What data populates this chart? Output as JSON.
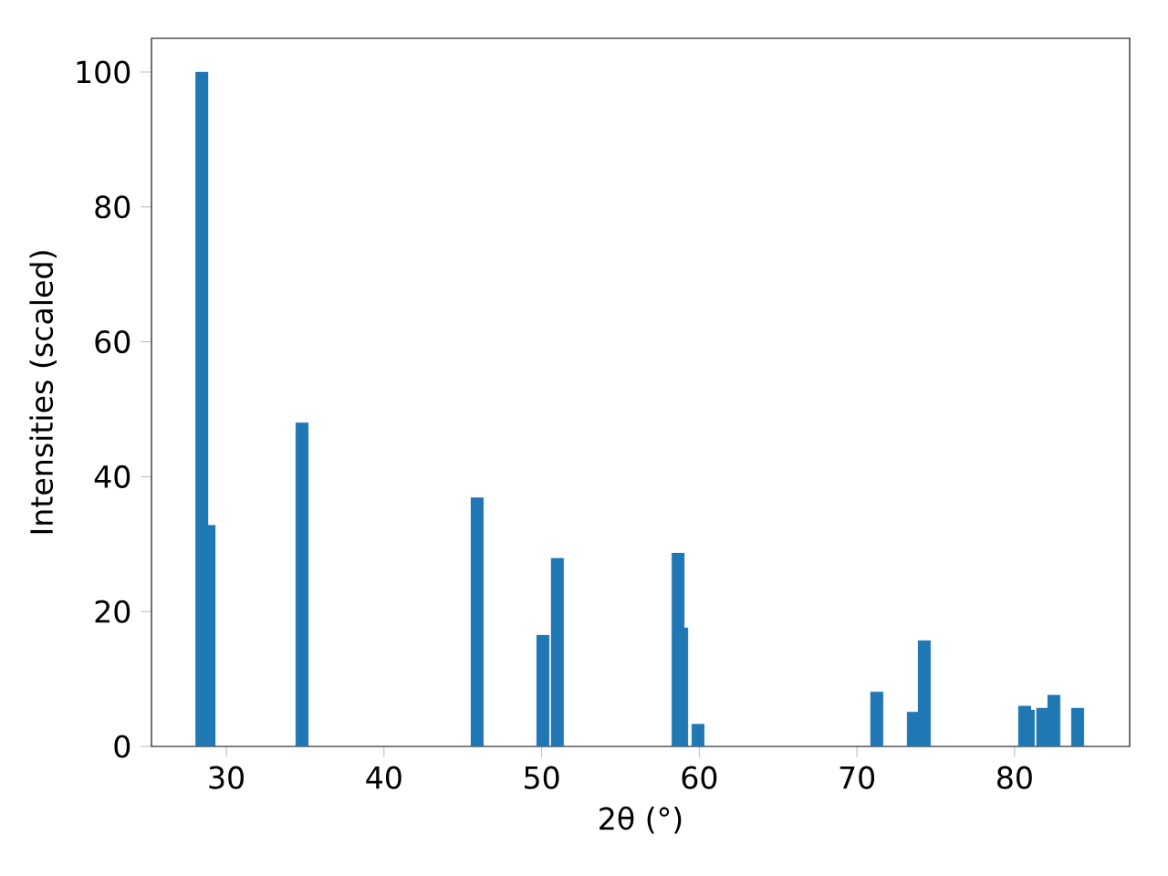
{
  "chart_data": {
    "type": "bar",
    "xlabel": "2θ (°)",
    "ylabel": "Intensities (scaled)",
    "color": "#1f77b4",
    "x": [
      28.44,
      28.9,
      34.8,
      45.91,
      50.08,
      51.0,
      58.65,
      58.88,
      59.92,
      71.26,
      73.58,
      74.27,
      80.64,
      80.87,
      81.79,
      82.49,
      84.0
    ],
    "values": [
      100,
      32.8,
      48.0,
      36.9,
      16.5,
      27.9,
      28.7,
      17.6,
      3.3,
      8.1,
      5.1,
      15.7,
      6.0,
      5.4,
      5.7,
      7.6,
      5.7
    ],
    "xlim": [
      25.25,
      87.3
    ],
    "ylim": [
      0,
      105
    ],
    "xticks": [
      30,
      40,
      50,
      60,
      70,
      80
    ],
    "yticks": [
      0,
      20,
      40,
      60,
      80,
      100
    ],
    "grid": false
  }
}
